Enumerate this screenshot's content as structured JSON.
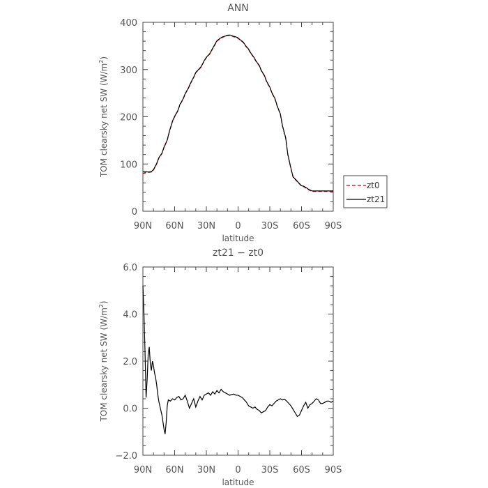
{
  "chart_data": [
    {
      "type": "line",
      "title": "ANN",
      "xlabel": "latitude",
      "ylabel": "TOM clearsky net SW (W/m²)",
      "ylabel_prefix": "TOM clearsky net SW (W/m",
      "ylabel_sup": "2",
      "ylabel_suffix": ")",
      "xlim": [
        90,
        -90
      ],
      "ylim": [
        0,
        400
      ],
      "x_ticks": [
        90,
        60,
        30,
        0,
        -30,
        -60,
        -90
      ],
      "x_tick_labels": [
        "90N",
        "60N",
        "30N",
        "0",
        "30S",
        "60S",
        "90S"
      ],
      "y_ticks": [
        0,
        100,
        200,
        300,
        400
      ],
      "y_tick_labels": [
        "0",
        "100",
        "200",
        "300",
        "400"
      ],
      "legend": {
        "position": "right",
        "entries": [
          "zt0",
          "zt21"
        ]
      },
      "series": [
        {
          "name": "zt0",
          "color": "#cc0000",
          "dash": "dashed",
          "x": [
            90,
            88,
            85,
            82,
            80,
            77,
            75,
            72,
            70,
            67,
            65,
            62,
            60,
            57,
            55,
            52,
            50,
            47,
            45,
            42,
            40,
            37,
            35,
            32,
            30,
            27,
            25,
            22,
            20,
            17,
            15,
            12,
            10,
            7,
            5,
            2,
            0,
            -2,
            -5,
            -7,
            -10,
            -12,
            -15,
            -17,
            -20,
            -22,
            -25,
            -27,
            -30,
            -32,
            -35,
            -37,
            -40,
            -42,
            -45,
            -47,
            -50,
            -52,
            -55,
            -57,
            -60,
            -62,
            -65,
            -67,
            -70,
            -72,
            -75,
            -77,
            -80,
            -82,
            -85,
            -87,
            -90
          ],
          "y": [
            80,
            82,
            82,
            83,
            87,
            100,
            112,
            122,
            135,
            150,
            168,
            190,
            200,
            212,
            225,
            237,
            248,
            260,
            270,
            283,
            293,
            300,
            305,
            318,
            325,
            332,
            340,
            352,
            360,
            365,
            368,
            370,
            372,
            372,
            370,
            368,
            366,
            362,
            357,
            350,
            342,
            334,
            325,
            317,
            308,
            297,
            286,
            274,
            262,
            250,
            237,
            222,
            205,
            180,
            155,
            120,
            90,
            72,
            65,
            60,
            53,
            52,
            48,
            45,
            42,
            42,
            42,
            42,
            42,
            42,
            42,
            42,
            42
          ]
        },
        {
          "name": "zt21",
          "color": "#000000",
          "dash": "solid",
          "x": [
            90,
            88,
            85,
            82,
            80,
            77,
            75,
            72,
            70,
            67,
            65,
            62,
            60,
            57,
            55,
            52,
            50,
            47,
            45,
            42,
            40,
            37,
            35,
            32,
            30,
            27,
            25,
            22,
            20,
            17,
            15,
            12,
            10,
            7,
            5,
            2,
            0,
            -2,
            -5,
            -7,
            -10,
            -12,
            -15,
            -17,
            -20,
            -22,
            -25,
            -27,
            -30,
            -32,
            -35,
            -37,
            -40,
            -42,
            -45,
            -47,
            -50,
            -52,
            -55,
            -57,
            -60,
            -62,
            -65,
            -67,
            -70,
            -72,
            -75,
            -77,
            -80,
            -82,
            -85,
            -87,
            -90
          ],
          "y": [
            85,
            84,
            83,
            84,
            88,
            101,
            113,
            123,
            136,
            151,
            169,
            191,
            201,
            213,
            226,
            238,
            249,
            261,
            271,
            284,
            294,
            301,
            306,
            319,
            326,
            333,
            341,
            353,
            361,
            366,
            369,
            371,
            373,
            373,
            371,
            369,
            367,
            363,
            358,
            351,
            343,
            335,
            326,
            318,
            309,
            298,
            287,
            275,
            263,
            251,
            238,
            223,
            206,
            181,
            156,
            121,
            91,
            73,
            66,
            61,
            54,
            53,
            49,
            46,
            43,
            43,
            43,
            43,
            43,
            43,
            43,
            43,
            43
          ]
        }
      ]
    },
    {
      "type": "line",
      "title": "zt21 − zt0",
      "xlabel": "latitude",
      "ylabel": "TOM clearsky net SW (W/m²)",
      "ylabel_prefix": "TOM clearsky net SW (W/m",
      "ylabel_sup": "2",
      "ylabel_suffix": ")",
      "xlim": [
        90,
        -90
      ],
      "ylim": [
        -2,
        6
      ],
      "x_ticks": [
        90,
        60,
        30,
        0,
        -30,
        -60,
        -90
      ],
      "x_tick_labels": [
        "90N",
        "60N",
        "30N",
        "0",
        "30S",
        "60S",
        "90S"
      ],
      "y_ticks": [
        -2,
        0,
        2,
        4,
        6
      ],
      "y_tick_labels": [
        "−2.0",
        "0.0",
        "2.0",
        "4.0",
        "6.0"
      ],
      "series": [
        {
          "color": "#000000",
          "dash": "solid",
          "x": [
            90,
            89,
            88,
            87,
            86,
            85,
            84,
            83,
            82,
            81,
            80,
            79,
            78,
            77,
            76,
            75,
            74,
            73,
            72,
            71,
            70,
            69,
            68,
            67,
            66,
            64,
            62,
            60,
            58,
            56,
            54,
            52,
            50,
            48,
            46,
            44,
            42,
            40,
            38,
            36,
            34,
            32,
            30,
            28,
            26,
            24,
            22,
            20,
            18,
            16,
            14,
            12,
            10,
            8,
            6,
            4,
            2,
            0,
            -2,
            -4,
            -6,
            -8,
            -10,
            -12,
            -14,
            -16,
            -18,
            -20,
            -22,
            -24,
            -26,
            -28,
            -30,
            -32,
            -34,
            -36,
            -38,
            -40,
            -42,
            -44,
            -46,
            -48,
            -50,
            -52,
            -54,
            -56,
            -58,
            -60,
            -62,
            -64,
            -66,
            -68,
            -70,
            -72,
            -74,
            -76,
            -78,
            -80,
            -82,
            -84,
            -86,
            -88,
            -90
          ],
          "y": [
            5.2,
            4.0,
            2.4,
            0.45,
            1.2,
            2.3,
            2.6,
            1.9,
            1.6,
            2.0,
            1.8,
            1.5,
            1.3,
            1.0,
            0.6,
            0.3,
            0.1,
            -0.1,
            -0.3,
            -0.6,
            -0.9,
            -1.1,
            -0.6,
            0.1,
            0.35,
            0.3,
            0.4,
            0.35,
            0.45,
            0.5,
            0.35,
            0.4,
            0.55,
            0.3,
            0.0,
            0.2,
            0.4,
            0.05,
            0.3,
            0.5,
            0.35,
            0.55,
            0.6,
            0.65,
            0.55,
            0.7,
            0.6,
            0.75,
            0.65,
            0.8,
            0.7,
            0.65,
            0.6,
            0.55,
            0.58,
            0.6,
            0.55,
            0.55,
            0.5,
            0.45,
            0.35,
            0.25,
            0.1,
            0.05,
            0.0,
            0.05,
            -0.05,
            -0.1,
            -0.2,
            -0.15,
            -0.1,
            0.05,
            0.15,
            0.1,
            0.2,
            0.3,
            0.35,
            0.4,
            0.35,
            0.38,
            0.3,
            0.2,
            0.1,
            -0.05,
            -0.2,
            -0.35,
            -0.3,
            -0.1,
            0.1,
            0.25,
            0.0,
            0.15,
            0.2,
            0.3,
            0.4,
            0.35,
            0.2,
            0.2,
            0.25,
            0.3,
            0.3,
            0.25,
            0.3
          ]
        }
      ]
    }
  ]
}
